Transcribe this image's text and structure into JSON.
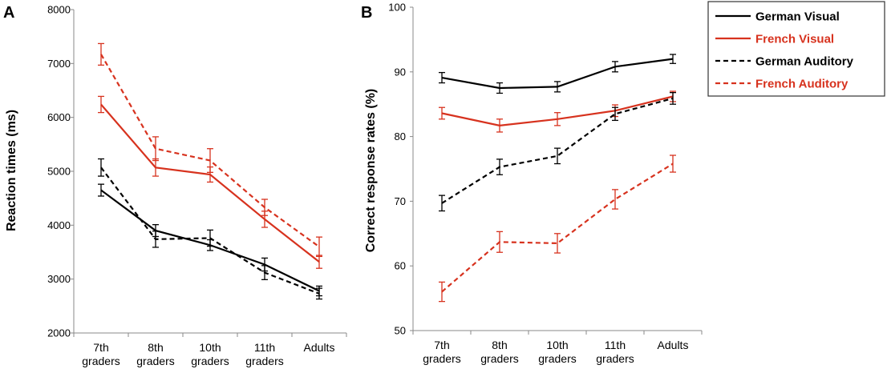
{
  "series_styles": [
    {
      "name": "German Visual",
      "color": "#000000",
      "dashed": false
    },
    {
      "name": "French Visual",
      "color": "#d7321e",
      "dashed": false
    },
    {
      "name": "German Auditory",
      "color": "#000000",
      "dashed": true
    },
    {
      "name": "French Auditory",
      "color": "#d7321e",
      "dashed": true
    }
  ],
  "chart_data": [
    {
      "panel": "A",
      "type": "line",
      "ylabel": "Reaction times (ms)",
      "xlabel": "",
      "ylim": [
        2000,
        8000
      ],
      "yticks": [
        2000,
        3000,
        4000,
        5000,
        6000,
        7000,
        8000
      ],
      "categories": [
        [
          "7th",
          "graders"
        ],
        [
          "8th",
          "graders"
        ],
        [
          "10th",
          "graders"
        ],
        [
          "11th",
          "graders"
        ],
        [
          "Adults"
        ]
      ],
      "series": [
        {
          "name": "German Visual",
          "values": [
            4650,
            3900,
            3630,
            3270,
            2780
          ],
          "errors": [
            110,
            110,
            100,
            120,
            90
          ]
        },
        {
          "name": "French Visual",
          "values": [
            6240,
            5070,
            4940,
            4110,
            3320
          ],
          "errors": [
            150,
            160,
            140,
            150,
            120
          ]
        },
        {
          "name": "German Auditory",
          "values": [
            5070,
            3740,
            3760,
            3120,
            2730
          ],
          "errors": [
            160,
            150,
            150,
            130,
            100
          ]
        },
        {
          "name": "French Auditory",
          "values": [
            7170,
            5420,
            5200,
            4330,
            3600
          ],
          "errors": [
            200,
            220,
            220,
            150,
            180
          ]
        }
      ]
    },
    {
      "panel": "B",
      "type": "line",
      "ylabel": "Correct response rates (%)",
      "xlabel": "",
      "ylim": [
        50,
        100
      ],
      "yticks": [
        50,
        60,
        70,
        80,
        90,
        100
      ],
      "categories": [
        [
          "7th",
          "graders"
        ],
        [
          "8th",
          "graders"
        ],
        [
          "10th",
          "graders"
        ],
        [
          "11th",
          "graders"
        ],
        [
          "Adults"
        ]
      ],
      "series": [
        {
          "name": "German Visual",
          "values": [
            89.1,
            87.5,
            87.7,
            90.8,
            92.0
          ],
          "errors": [
            0.8,
            0.8,
            0.8,
            0.8,
            0.7
          ]
        },
        {
          "name": "French Visual",
          "values": [
            83.6,
            81.7,
            82.7,
            84.0,
            86.2
          ],
          "errors": [
            0.9,
            1.0,
            1.0,
            0.9,
            0.8
          ]
        },
        {
          "name": "German Auditory",
          "values": [
            69.7,
            75.3,
            77.0,
            83.5,
            85.9
          ],
          "errors": [
            1.2,
            1.2,
            1.2,
            1.0,
            0.9
          ]
        },
        {
          "name": "French Auditory",
          "values": [
            56.0,
            63.7,
            63.5,
            70.3,
            75.8
          ],
          "errors": [
            1.5,
            1.6,
            1.5,
            1.5,
            1.3
          ]
        }
      ]
    }
  ]
}
